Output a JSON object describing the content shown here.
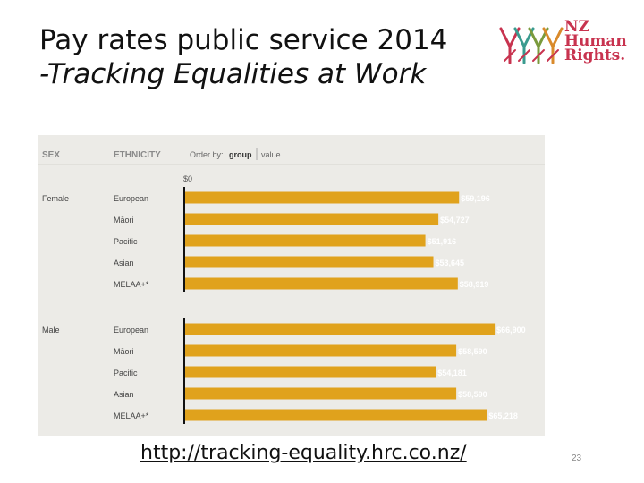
{
  "slide": {
    "title_line1": "Pay rates public service 2014",
    "title_line2": "-Tracking Equalities at Work",
    "url": "http://tracking-equality.hrc.co.nz/",
    "page_number": "23"
  },
  "logo": {
    "line1": "NZ",
    "line2": "Human",
    "line3": "Rights.",
    "colors": [
      "#c8334f",
      "#3a9b8f",
      "#7a9a3c",
      "#d98a2b"
    ]
  },
  "chart_data": {
    "type": "bar",
    "orientation": "horizontal",
    "headers": {
      "sex": "SEX",
      "ethnicity": "ETHNICITY",
      "order_by": "Order by:",
      "order_group": "group",
      "order_value": "value"
    },
    "axis_label": "$0",
    "bar_color": "#e0a21c",
    "xlim": [
      0,
      75000
    ],
    "groups": [
      {
        "name": "Female",
        "categories": [
          "European",
          "Māori",
          "Pacific",
          "Asian",
          "MELAA+*"
        ],
        "values": [
          59196,
          54727,
          51916,
          53645,
          58919
        ],
        "labels": [
          "$59,196",
          "$54,727",
          "$51,916",
          "$53,645",
          "$58,919"
        ]
      },
      {
        "name": "Male",
        "categories": [
          "European",
          "Māori",
          "Pacific",
          "Asian",
          "MELAA+*"
        ],
        "values": [
          66900,
          58590,
          54181,
          58590,
          65218
        ],
        "labels": [
          "$66,900",
          "$58,590",
          "$54,181",
          "$58,590",
          "$65,218"
        ]
      }
    ]
  }
}
